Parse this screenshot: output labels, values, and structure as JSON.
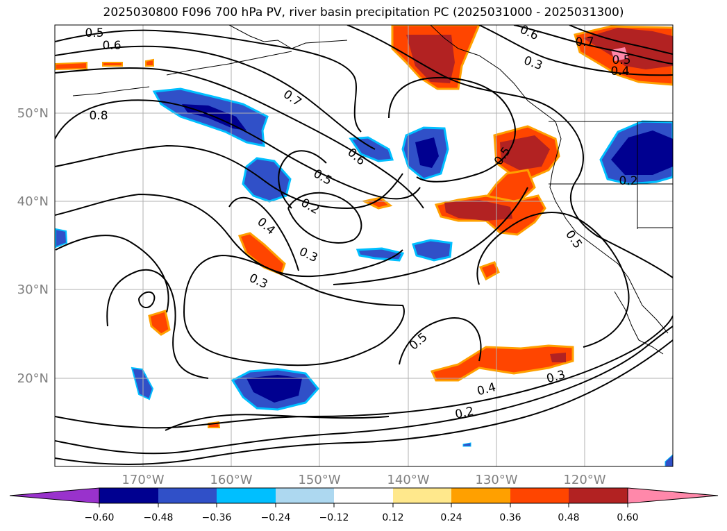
{
  "title": "2025030800 F096 700 hPa PV, river basin precipitation PC (2025031000 - 2025031300)",
  "map": {
    "lat_labels": [
      "50°N",
      "40°N",
      "30°N",
      "20°N"
    ],
    "lon_labels": [
      "170°W",
      "160°W",
      "150°W",
      "140°W",
      "130°W",
      "120°W"
    ],
    "contour_labels": [
      "0.5",
      "0.6",
      "0.8",
      "0.7",
      "0.6",
      "0.5",
      "0.2",
      "0.4",
      "0.3",
      "0.3",
      "0.6",
      "0.3",
      "0.7",
      "0.5",
      "0.4",
      "0.5",
      "0.5",
      "0.2",
      "0.5",
      "0.4",
      "0.3",
      "0.2"
    ],
    "colors": {
      "pv_contour": "#000000",
      "coastline": "#000000",
      "gridline": "#b0b0b0"
    }
  },
  "colorbar": {
    "tick_labels": [
      "−0.60",
      "−0.48",
      "−0.36",
      "−0.24",
      "−0.12",
      "0.12",
      "0.24",
      "0.36",
      "0.48",
      "0.60"
    ],
    "colors": [
      "#9932cc",
      "#000090",
      "#3050c8",
      "#00bfff",
      "#add8f0",
      "#ffffff",
      "#ffe88c",
      "#ffa000",
      "#ff4500",
      "#b22222",
      "#ff88aa"
    ]
  }
}
